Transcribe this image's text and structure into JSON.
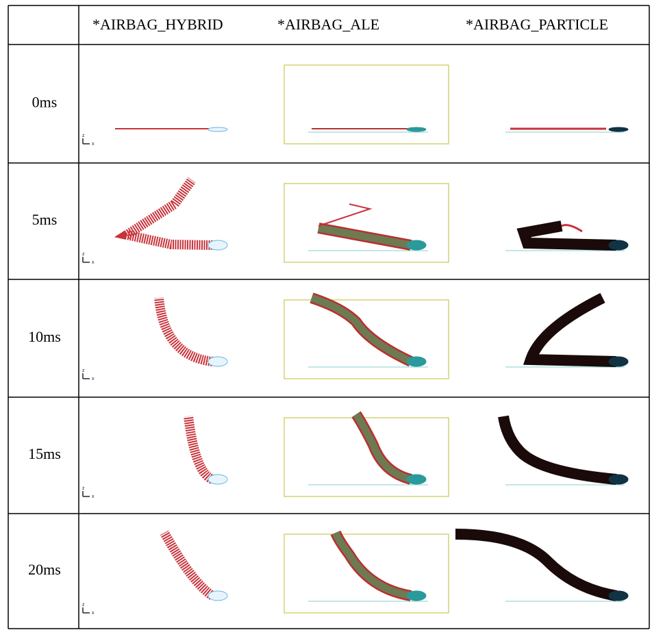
{
  "table": {
    "header": [
      "*AIRBAG_HYBRID",
      "*AIRBAG_ALE",
      "*AIRBAG_PARTICLE"
    ],
    "rows": [
      "0ms",
      "5ms",
      "10ms",
      "15ms",
      "20ms"
    ],
    "axis_triad": [
      "z",
      "x"
    ]
  }
}
